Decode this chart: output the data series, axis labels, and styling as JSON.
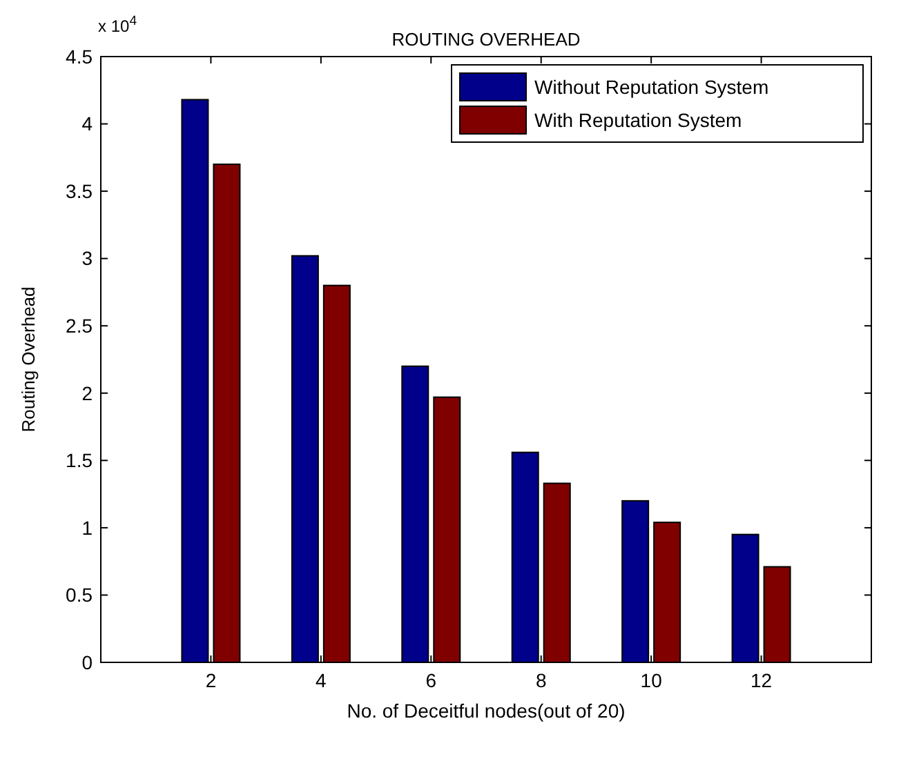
{
  "chart_data": {
    "type": "bar",
    "title": "ROUTING OVERHEAD",
    "xlabel": "No. of Deceitful nodes(out of 20)",
    "ylabel": "Routing Overhead",
    "annotations": [
      "x 10$^{4}$"
    ],
    "categories": [
      "2",
      "4",
      "6",
      "8",
      "10",
      "12"
    ],
    "series": [
      {
        "name": "Without Reputation System",
        "color": "#00008b",
        "values": [
          4.18,
          3.02,
          2.2,
          1.56,
          1.2,
          0.95
        ]
      },
      {
        "name": "With Reputation System",
        "color": "#800000",
        "values": [
          3.7,
          2.8,
          1.97,
          1.33,
          1.04,
          0.71
        ]
      }
    ],
    "ylim": [
      0,
      4.5
    ],
    "yticks": [
      0,
      0.5,
      1,
      1.5,
      2,
      2.5,
      3,
      3.5,
      4,
      4.5
    ],
    "legend": "top right"
  }
}
